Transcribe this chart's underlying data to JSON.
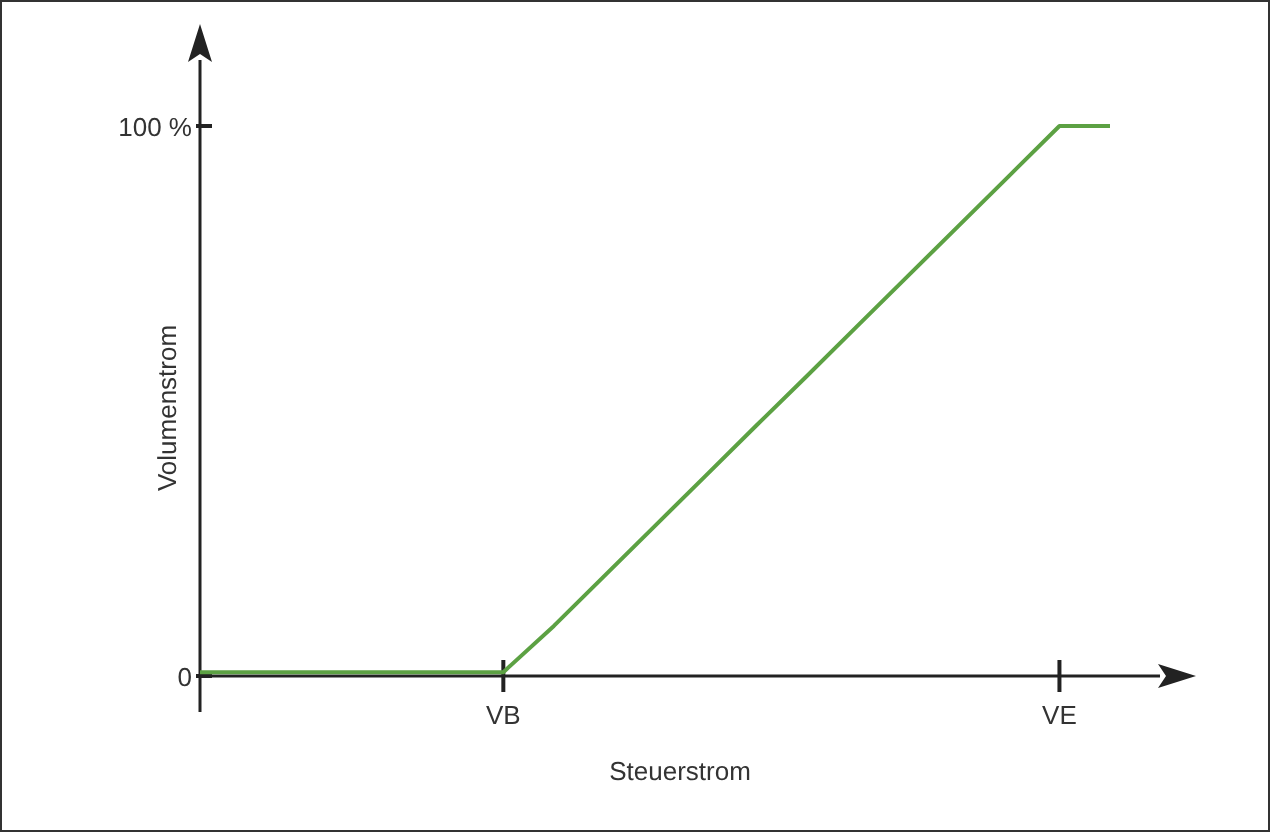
{
  "chart_data": {
    "type": "line",
    "xlabel": "Steuerstrom",
    "ylabel": "Volumenstrom",
    "categories": [
      null,
      null,
      null,
      null,
      null,
      null,
      "VB",
      null,
      null,
      null,
      null,
      null,
      null,
      null,
      null,
      null,
      null,
      "VE",
      null
    ],
    "series": [
      {
        "color": "#5ca143",
        "values": [
          0.7,
          0.7,
          0.7,
          0.7,
          0.7,
          0.7,
          0.7,
          9.1,
          18.2,
          27.3,
          36.4,
          45.5,
          54.5,
          63.6,
          72.7,
          81.8,
          90.9,
          100,
          100
        ]
      }
    ],
    "ylim": [
      0,
      112
    ],
    "yticks": [
      {
        "value": 0,
        "label": "0"
      },
      {
        "value": 100,
        "label": "100 %"
      }
    ],
    "grid": false,
    "line_style": "solid"
  }
}
